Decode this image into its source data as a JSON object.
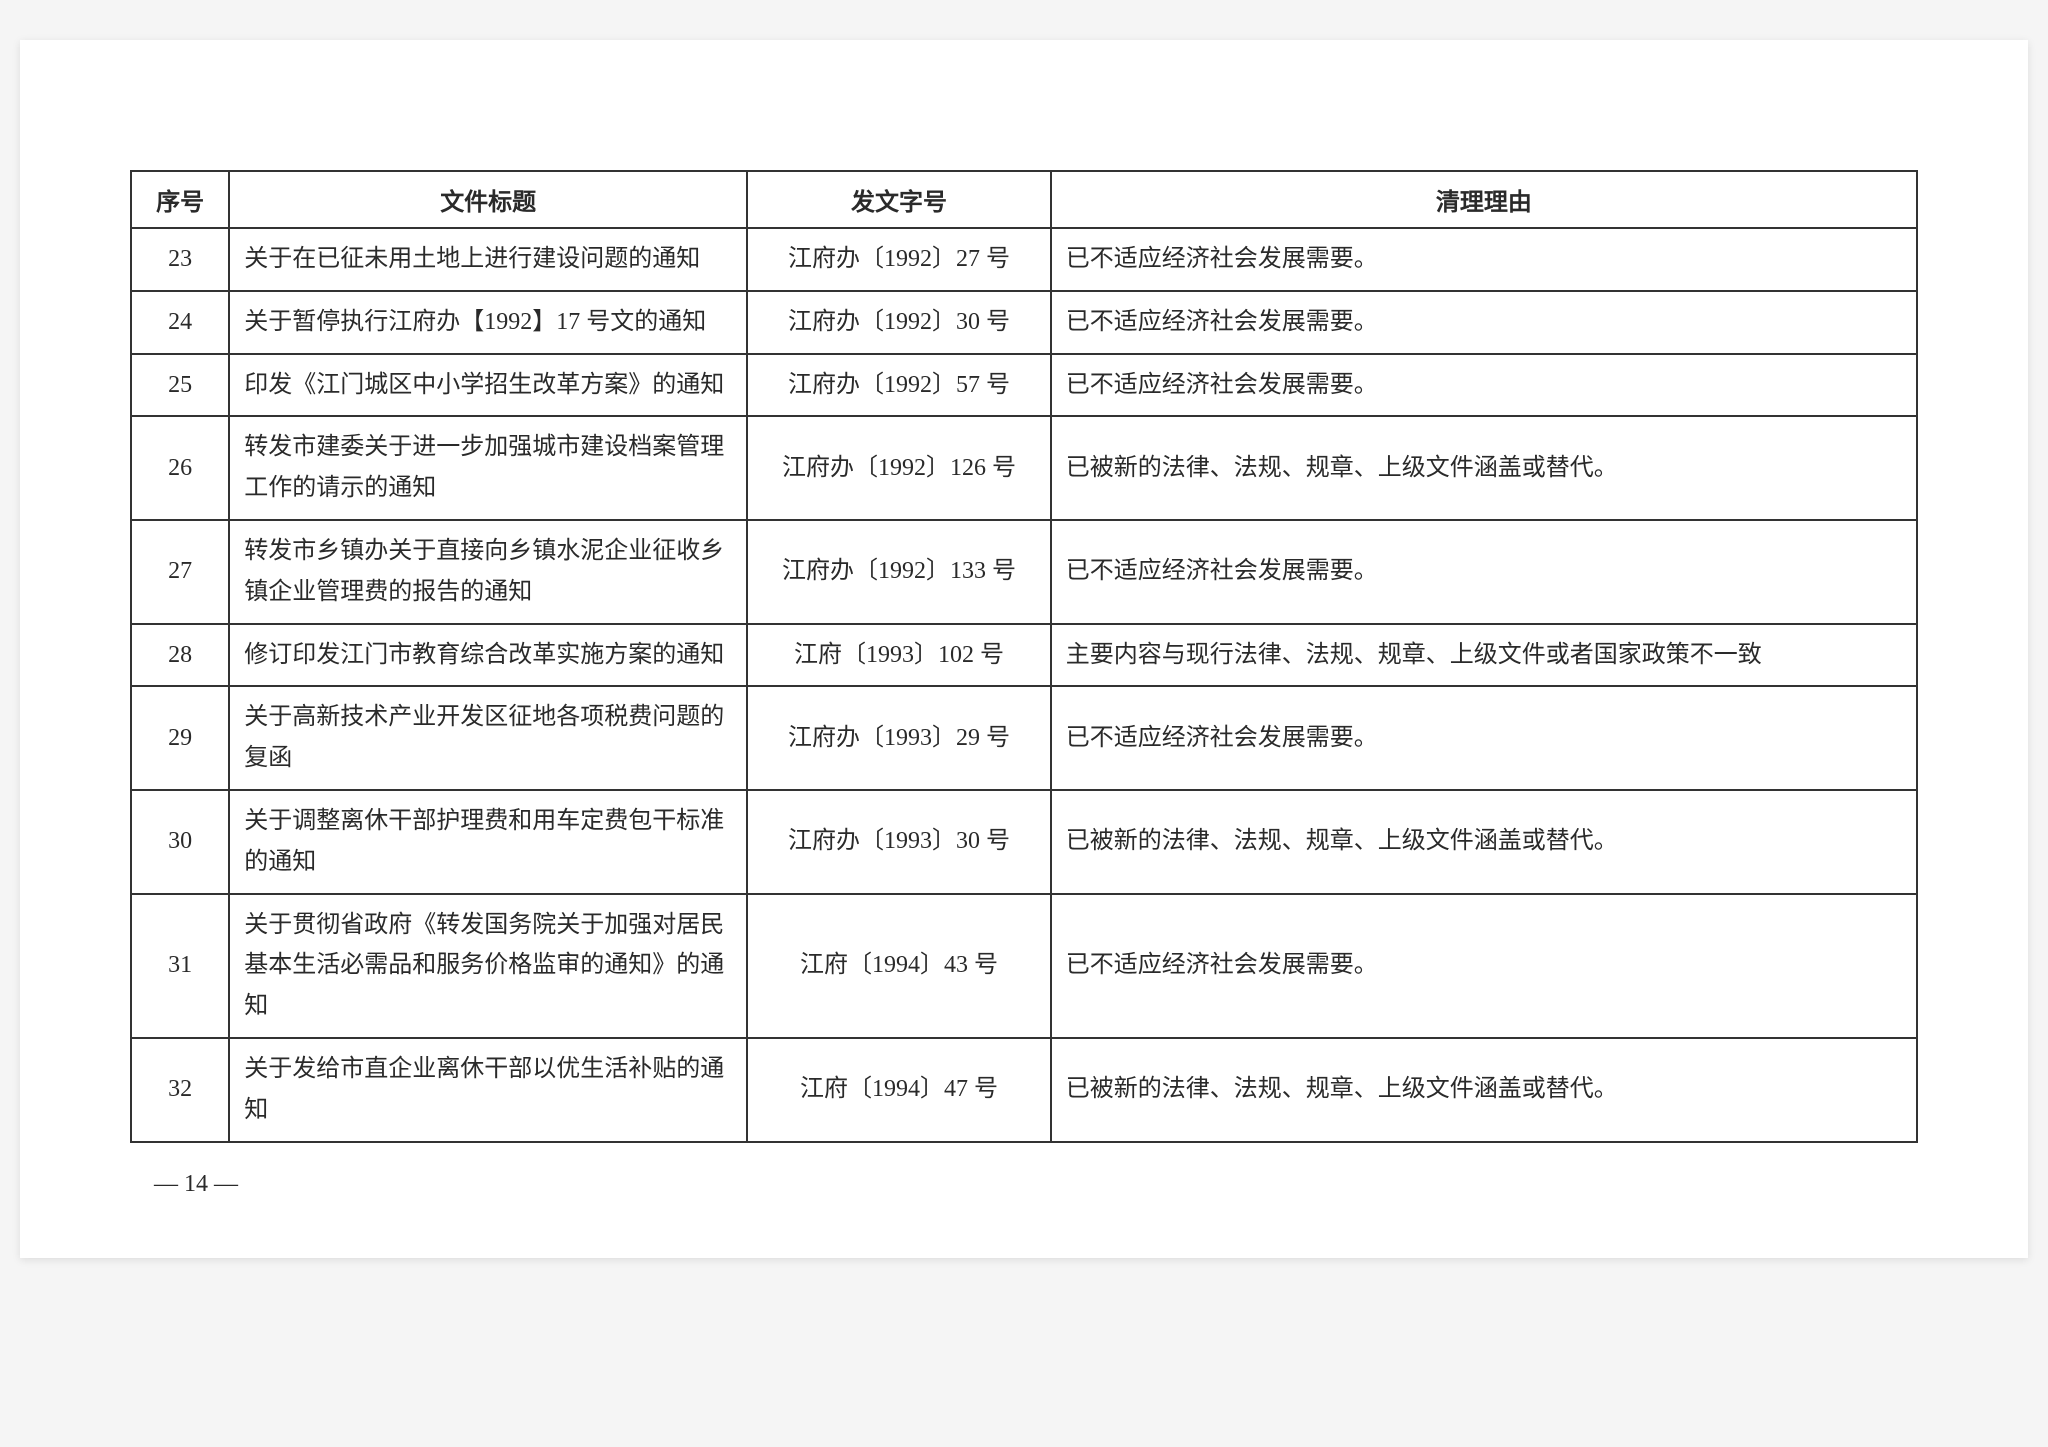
{
  "table": {
    "columns": {
      "seq": "序号",
      "title": "文件标题",
      "docno": "发文字号",
      "reason": "清理理由"
    },
    "rows": [
      {
        "seq": "23",
        "title": "关于在已征未用土地上进行建设问题的通知",
        "docno": "江府办〔1992〕27 号",
        "reason": "已不适应经济社会发展需要。"
      },
      {
        "seq": "24",
        "title": "关于暂停执行江府办【1992】17 号文的通知",
        "docno": "江府办〔1992〕30 号",
        "reason": "已不适应经济社会发展需要。"
      },
      {
        "seq": "25",
        "title": "印发《江门城区中小学招生改革方案》的通知",
        "docno": "江府办〔1992〕57 号",
        "reason": "已不适应经济社会发展需要。"
      },
      {
        "seq": "26",
        "title": "转发市建委关于进一步加强城市建设档案管理工作的请示的通知",
        "docno": "江府办〔1992〕126 号",
        "reason": "已被新的法律、法规、规章、上级文件涵盖或替代。"
      },
      {
        "seq": "27",
        "title": "转发市乡镇办关于直接向乡镇水泥企业征收乡镇企业管理费的报告的通知",
        "docno": "江府办〔1992〕133 号",
        "reason": "已不适应经济社会发展需要。"
      },
      {
        "seq": "28",
        "title": "修订印发江门市教育综合改革实施方案的通知",
        "docno": "江府〔1993〕102 号",
        "reason": "主要内容与现行法律、法规、规章、上级文件或者国家政策不一致"
      },
      {
        "seq": "29",
        "title": "关于高新技术产业开发区征地各项税费问题的复函",
        "docno": "江府办〔1993〕29 号",
        "reason": "已不适应经济社会发展需要。"
      },
      {
        "seq": "30",
        "title": "关于调整离休干部护理费和用车定费包干标准的通知",
        "docno": "江府办〔1993〕30 号",
        "reason": "已被新的法律、法规、规章、上级文件涵盖或替代。"
      },
      {
        "seq": "31",
        "title": "关于贯彻省政府《转发国务院关于加强对居民基本生活必需品和服务价格监审的通知》的通知",
        "docno": "江府〔1994〕43 号",
        "reason": "已不适应经济社会发展需要。"
      },
      {
        "seq": "32",
        "title": "关于发给市直企业离休干部以优生活补贴的通知",
        "docno": "江府〔1994〕47 号",
        "reason": "已被新的法律、法规、规章、上级文件涵盖或替代。"
      }
    ]
  },
  "page_number": "— 14 —"
}
